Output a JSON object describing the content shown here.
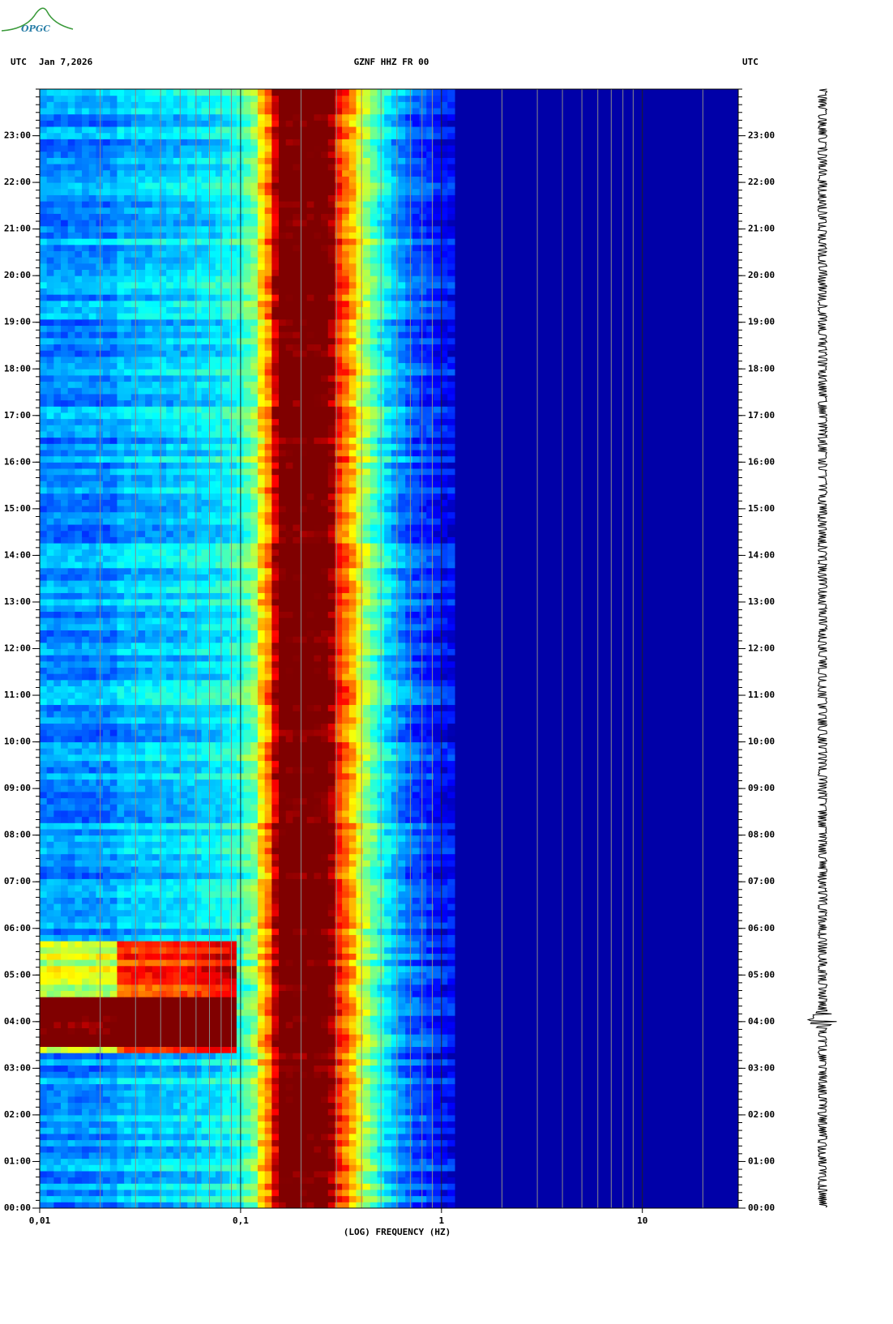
{
  "logo": "OPGC",
  "chart_data": {
    "type": "spectrogram",
    "title": "GZNF HHZ FR 00",
    "time_zone": "UTC",
    "date": "Jan 7,2026",
    "xlabel": "(LOG) FREQUENCY (HZ)",
    "xscale": "log",
    "xlim": [
      0.01,
      30
    ],
    "xticks": [
      {
        "value": 0.01,
        "label": "0,01"
      },
      {
        "value": 0.1,
        "label": "0,1"
      },
      1,
      10
    ],
    "ylim": [
      0,
      24
    ],
    "yticks": [
      {
        "value": 0,
        "label": "00:00"
      },
      {
        "value": 1,
        "label": "01:00"
      },
      {
        "value": 2,
        "label": "02:00"
      },
      {
        "value": 3,
        "label": "03:00"
      },
      {
        "value": 4,
        "label": "04:00"
      },
      {
        "value": 5,
        "label": "05:00"
      },
      {
        "value": 6,
        "label": "06:00"
      },
      {
        "value": 7,
        "label": "07:00"
      },
      {
        "value": 8,
        "label": "08:00"
      },
      {
        "value": 9,
        "label": "09:00"
      },
      {
        "value": 10,
        "label": "10:00"
      },
      {
        "value": 11,
        "label": "11:00"
      },
      {
        "value": 12,
        "label": "12:00"
      },
      {
        "value": 13,
        "label": "13:00"
      },
      {
        "value": 14,
        "label": "14:00"
      },
      {
        "value": 15,
        "label": "15:00"
      },
      {
        "value": 16,
        "label": "16:00"
      },
      {
        "value": 17,
        "label": "17:00"
      },
      {
        "value": 18,
        "label": "18:00"
      },
      {
        "value": 19,
        "label": "19:00"
      },
      {
        "value": 20,
        "label": "20:00"
      },
      {
        "value": 21,
        "label": "21:00"
      },
      {
        "value": 22,
        "label": "22:00"
      },
      {
        "value": 23,
        "label": "23:00"
      }
    ]
  }
}
